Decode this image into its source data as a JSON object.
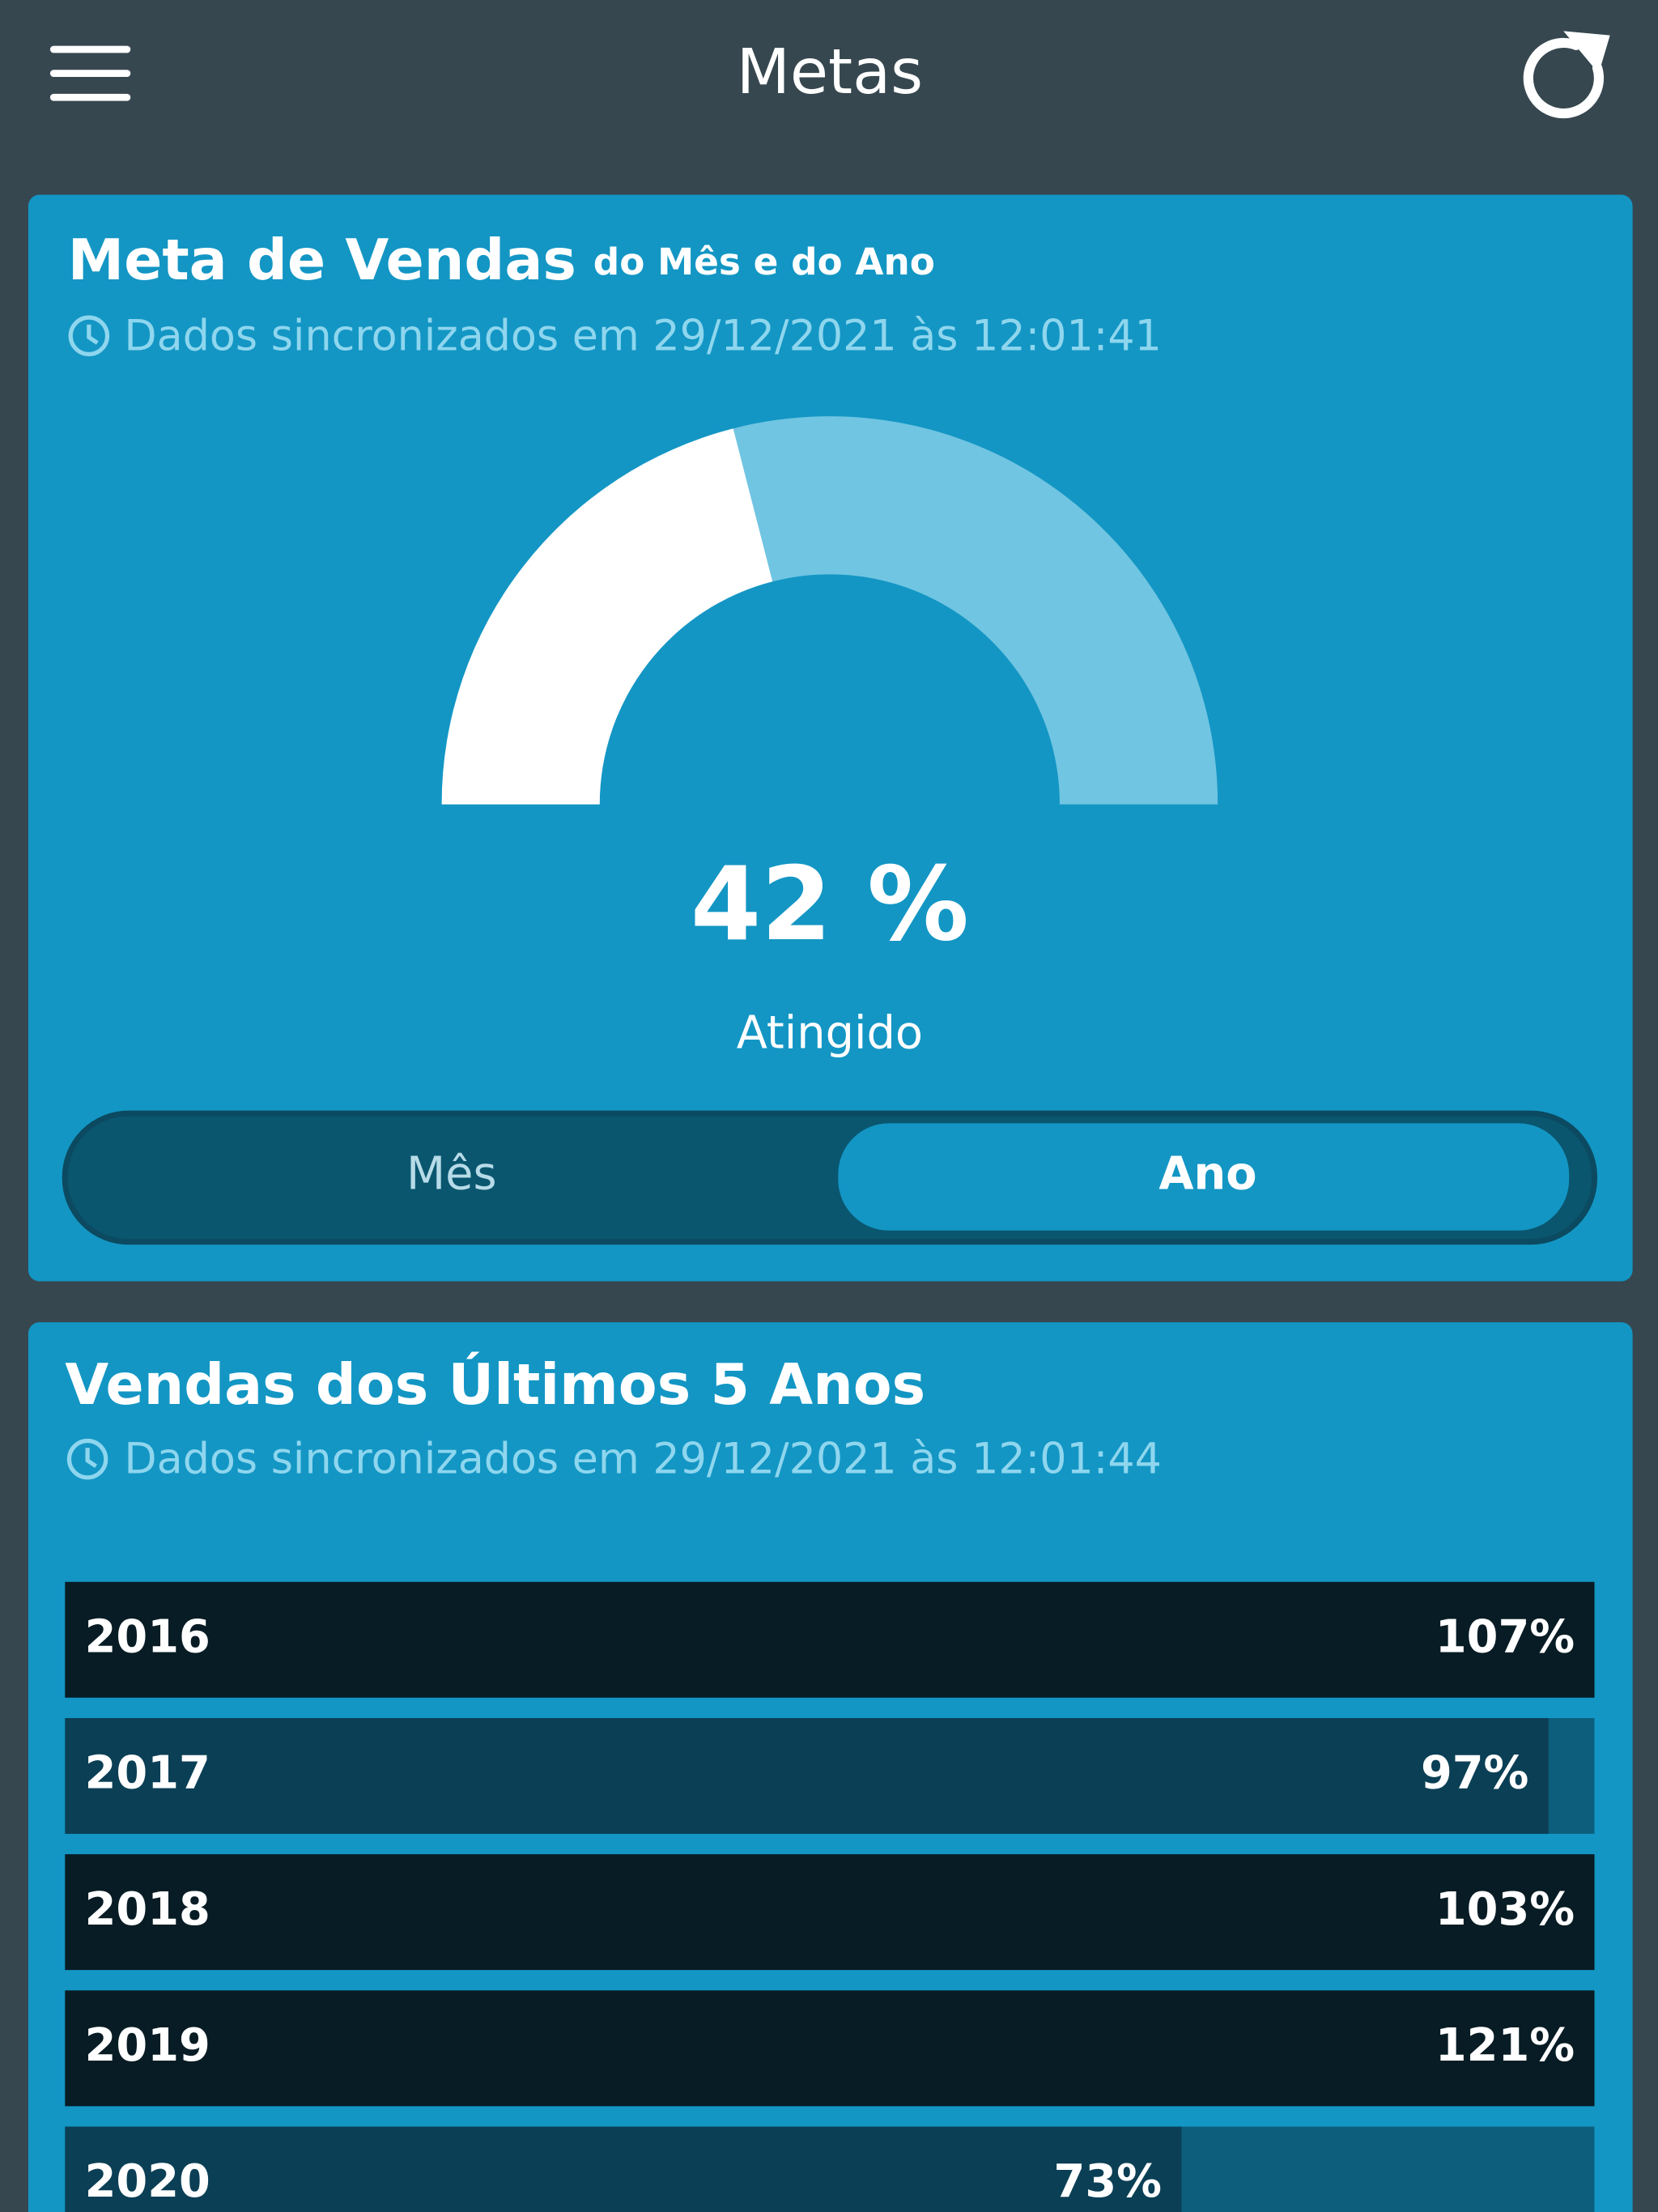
{
  "header": {
    "title": "Metas"
  },
  "goal_card": {
    "title": "Meta de Vendas",
    "subtitle": "do Mês e do Ano",
    "sync": "Dados sincronizados em 29/12/2021 às 12:01:41",
    "gauge": {
      "value": 42,
      "value_label": "42 %",
      "max": 100,
      "caption": "Atingido",
      "color": "#ffffff",
      "track_color": "#70c5e2"
    },
    "tabs": [
      "Mês",
      "Ano"
    ],
    "active_tab": 1
  },
  "sales_card": {
    "title": "Vendas dos Últimos 5 Anos",
    "sync": "Dados sincronizados em 29/12/2021 às 12:01:44",
    "bars": {
      "categories": [
        "2016",
        "2017",
        "2018",
        "2019",
        "2020"
      ],
      "values": [
        107,
        97,
        103,
        121,
        73
      ],
      "value_labels": [
        "107%",
        "97%",
        "103%",
        "121%",
        "73%"
      ],
      "colors": [
        "#081c25",
        "#0b3f55",
        "#081c25",
        "#081c25",
        "#0b3f55"
      ],
      "track_color": "#0d5e7d",
      "xlim": [
        0,
        100
      ]
    }
  }
}
